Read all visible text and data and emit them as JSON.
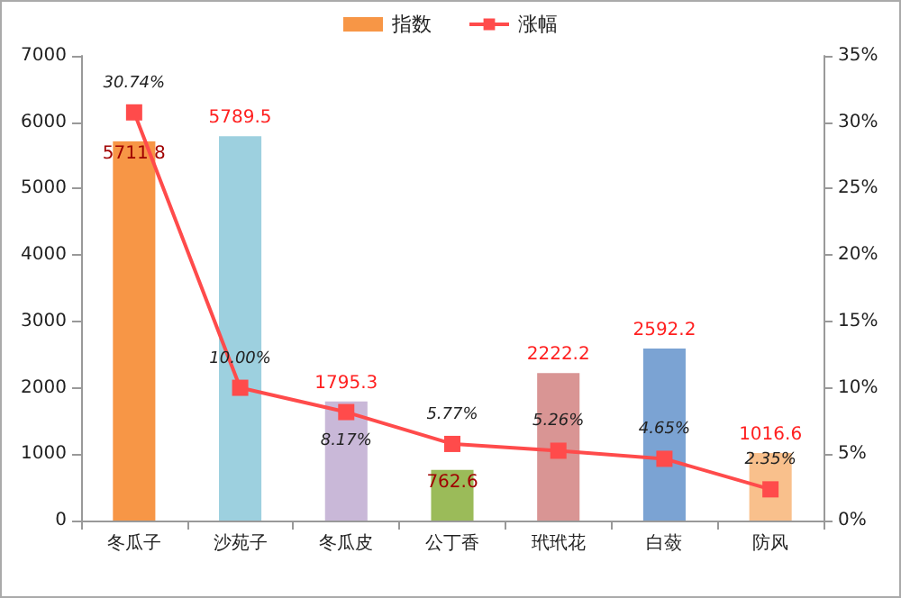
{
  "chart_data": {
    "type": "bar",
    "categories": [
      "冬瓜子",
      "沙苑子",
      "冬瓜皮",
      "公丁香",
      "玳玳花",
      "白蔹",
      "防风"
    ],
    "series": [
      {
        "name": "指数",
        "color": "#f79646",
        "colors": [
          "#f79646",
          "#9dd0df",
          "#c9b8d8",
          "#9bbb59",
          "#d99594",
          "#7ba3d3",
          "#f9c08c"
        ],
        "values": [
          5711.8,
          5789.5,
          1795.3,
          762.6,
          2222.2,
          2592.2,
          1016.6
        ],
        "value_labels": [
          "5711.8",
          "5789.5",
          "1795.3",
          "762.6",
          "2222.2",
          "2592.2",
          "1016.6"
        ]
      },
      {
        "name": "涨幅",
        "type": "line",
        "axis": "y2",
        "color": "#ff4b4b",
        "marker": "square",
        "values": [
          30.74,
          10.0,
          8.17,
          5.77,
          5.26,
          4.65,
          2.35
        ],
        "value_labels": [
          "30.74%",
          "10.00%",
          "8.17%",
          "5.77%",
          "5.26%",
          "4.65%",
          "2.35%"
        ]
      }
    ],
    "ylim": [
      0,
      7000
    ],
    "yticks": [
      0,
      1000,
      2000,
      3000,
      4000,
      5000,
      6000,
      7000
    ],
    "y2lim": [
      0,
      35
    ],
    "y2ticks": [
      {
        "value": 0,
        "label": "0%"
      },
      {
        "value": 5,
        "label": "5%"
      },
      {
        "value": 10,
        "label": "10%"
      },
      {
        "value": 15,
        "label": "15%"
      },
      {
        "value": 20,
        "label": "20%"
      },
      {
        "value": 25,
        "label": "25%"
      },
      {
        "value": 30,
        "label": "30%"
      },
      {
        "value": 35,
        "label": "35%"
      }
    ],
    "legend": "top",
    "grid": false
  }
}
